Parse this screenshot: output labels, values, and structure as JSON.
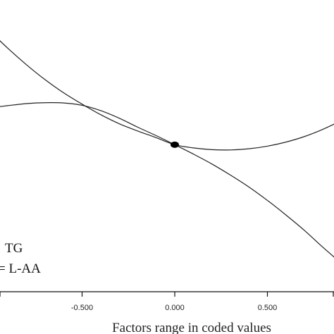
{
  "chart_data": {
    "type": "line",
    "xlabel": "Factors range in coded values",
    "ylabel": "",
    "title": "",
    "xlim": [
      -1.0,
      0.9
    ],
    "ylim": [
      0,
      1
    ],
    "x_ticks": [
      "-0.500",
      "0.000",
      "0.500"
    ],
    "x_tick_values": [
      -0.5,
      0.0,
      0.5
    ],
    "legend_position": "bottom-left",
    "reference_point": {
      "x": 0.0,
      "y": 0.504
    },
    "series": [
      {
        "name": "TG",
        "x": [
          -1.0,
          -0.9,
          -0.8,
          -0.7,
          -0.6,
          -0.5,
          -0.4,
          -0.3,
          -0.2,
          -0.1,
          0.0,
          0.1,
          0.2,
          0.3,
          0.4,
          0.5,
          0.6,
          0.7,
          0.8,
          0.9
        ],
        "y": [
          0.895,
          0.834,
          0.778,
          0.727,
          0.682,
          0.643,
          0.607,
          0.576,
          0.551,
          0.528,
          0.504,
          0.493,
          0.487,
          0.486,
          0.49,
          0.499,
          0.513,
          0.532,
          0.557,
          0.587
        ]
      },
      {
        "name": "L-AA",
        "x": [
          -1.0,
          -0.9,
          -0.8,
          -0.7,
          -0.6,
          -0.5,
          -0.4,
          -0.3,
          -0.2,
          -0.1,
          0.0,
          0.1,
          0.2,
          0.3,
          0.4,
          0.5,
          0.6,
          0.7,
          0.8,
          0.9
        ],
        "y": [
          0.63,
          0.638,
          0.645,
          0.648,
          0.647,
          0.639,
          0.621,
          0.595,
          0.564,
          0.535,
          0.504,
          0.472,
          0.438,
          0.4,
          0.359,
          0.313,
          0.263,
          0.21,
          0.152,
          0.097
        ]
      }
    ],
    "legend": [
      "TG",
      "= L-AA"
    ]
  }
}
